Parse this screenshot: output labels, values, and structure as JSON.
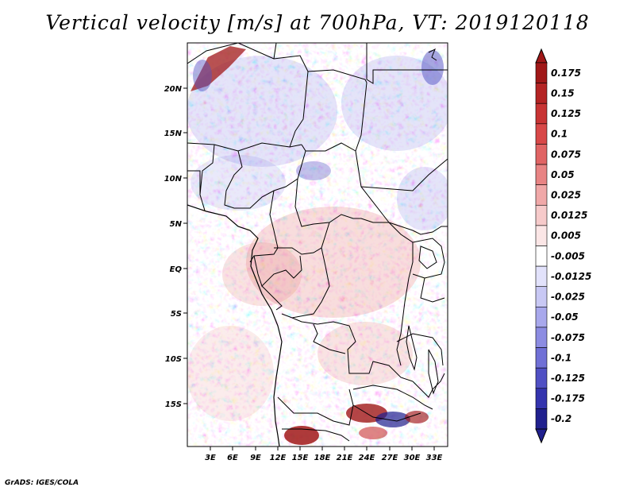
{
  "title": "Vertical velocity [m/s] at 700hPa, VT: 2019120118",
  "footer": "GrADS: IGES/COLA",
  "map": {
    "lat_labels": [
      "20N",
      "15N",
      "10N",
      "5N",
      "EQ",
      "5S",
      "10S",
      "15S"
    ],
    "lon_labels": [
      "3E",
      "6E",
      "9E",
      "12E",
      "15E",
      "18E",
      "21E",
      "24E",
      "27E",
      "30E",
      "33E"
    ]
  },
  "colorbar": {
    "labels": [
      "0.175",
      "0.15",
      "0.125",
      "0.1",
      "0.075",
      "0.05",
      "0.025",
      "0.0125",
      "0.005",
      "-0.005",
      "-0.0125",
      "-0.025",
      "-0.05",
      "-0.075",
      "-0.1",
      "-0.125",
      "-0.175",
      "-0.2"
    ],
    "colors": [
      "#a01818",
      "#b42424",
      "#c83434",
      "#d84848",
      "#e06464",
      "#e88484",
      "#f0a8a8",
      "#f6caca",
      "#fbe6e6",
      "#ffffff",
      "#e2e2fb",
      "#c8c8f4",
      "#a8a8ec",
      "#8c8ce2",
      "#7070d6",
      "#5050c4",
      "#3434ae",
      "#20208e"
    ]
  }
}
